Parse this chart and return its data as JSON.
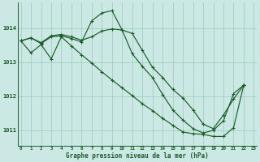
{
  "background_color": "#cce8e4",
  "grid_color": "#99ccbb",
  "line_color": "#1a5c28",
  "xlabel": "Graphe pression niveau de la mer (hPa)",
  "ylim": [
    1010.55,
    1014.75
  ],
  "xlim": [
    -0.3,
    23.3
  ],
  "yticks": [
    1011,
    1012,
    1013,
    1014
  ],
  "xticks": [
    0,
    1,
    2,
    3,
    4,
    5,
    6,
    7,
    8,
    9,
    10,
    11,
    12,
    13,
    14,
    15,
    16,
    17,
    18,
    19,
    20,
    21,
    22,
    23
  ],
  "line1_x": [
    0,
    1,
    2,
    3,
    4,
    5,
    6,
    7,
    8,
    9,
    10,
    11,
    12,
    13,
    14,
    15,
    16,
    17,
    18,
    19,
    20,
    21,
    22
  ],
  "line1_y": [
    1013.63,
    1013.72,
    1013.55,
    1013.75,
    1013.78,
    1013.7,
    1013.6,
    1014.22,
    1014.45,
    1014.52,
    1013.95,
    1013.25,
    1012.88,
    1012.55,
    1012.05,
    1011.6,
    1011.3,
    1011.05,
    1010.92,
    1011.0,
    1011.28,
    1012.08,
    1012.33
  ],
  "line2_x": [
    0,
    1,
    2,
    3,
    4,
    5,
    6,
    7,
    8,
    9,
    10,
    11,
    12,
    13,
    14,
    15,
    16,
    17,
    18,
    19,
    20,
    21,
    22
  ],
  "line2_y": [
    1013.63,
    1013.28,
    1013.52,
    1013.1,
    1013.75,
    1013.48,
    1013.22,
    1012.98,
    1012.72,
    1012.48,
    1012.25,
    1012.02,
    1011.78,
    1011.58,
    1011.35,
    1011.15,
    1010.95,
    1010.9,
    1010.88,
    1010.82,
    1010.82,
    1011.08,
    1012.33
  ],
  "line3_x": [
    0,
    1,
    2,
    3,
    4,
    5,
    6,
    7,
    8,
    9,
    10,
    11,
    12,
    13,
    14,
    15,
    16,
    17,
    18,
    19,
    20,
    21,
    22
  ],
  "line3_y": [
    1013.63,
    1013.72,
    1013.58,
    1013.78,
    1013.82,
    1013.75,
    1013.65,
    1013.75,
    1013.92,
    1013.98,
    1013.95,
    1013.85,
    1013.35,
    1012.85,
    1012.55,
    1012.2,
    1011.95,
    1011.6,
    1011.18,
    1011.05,
    1011.45,
    1011.92,
    1012.33
  ]
}
